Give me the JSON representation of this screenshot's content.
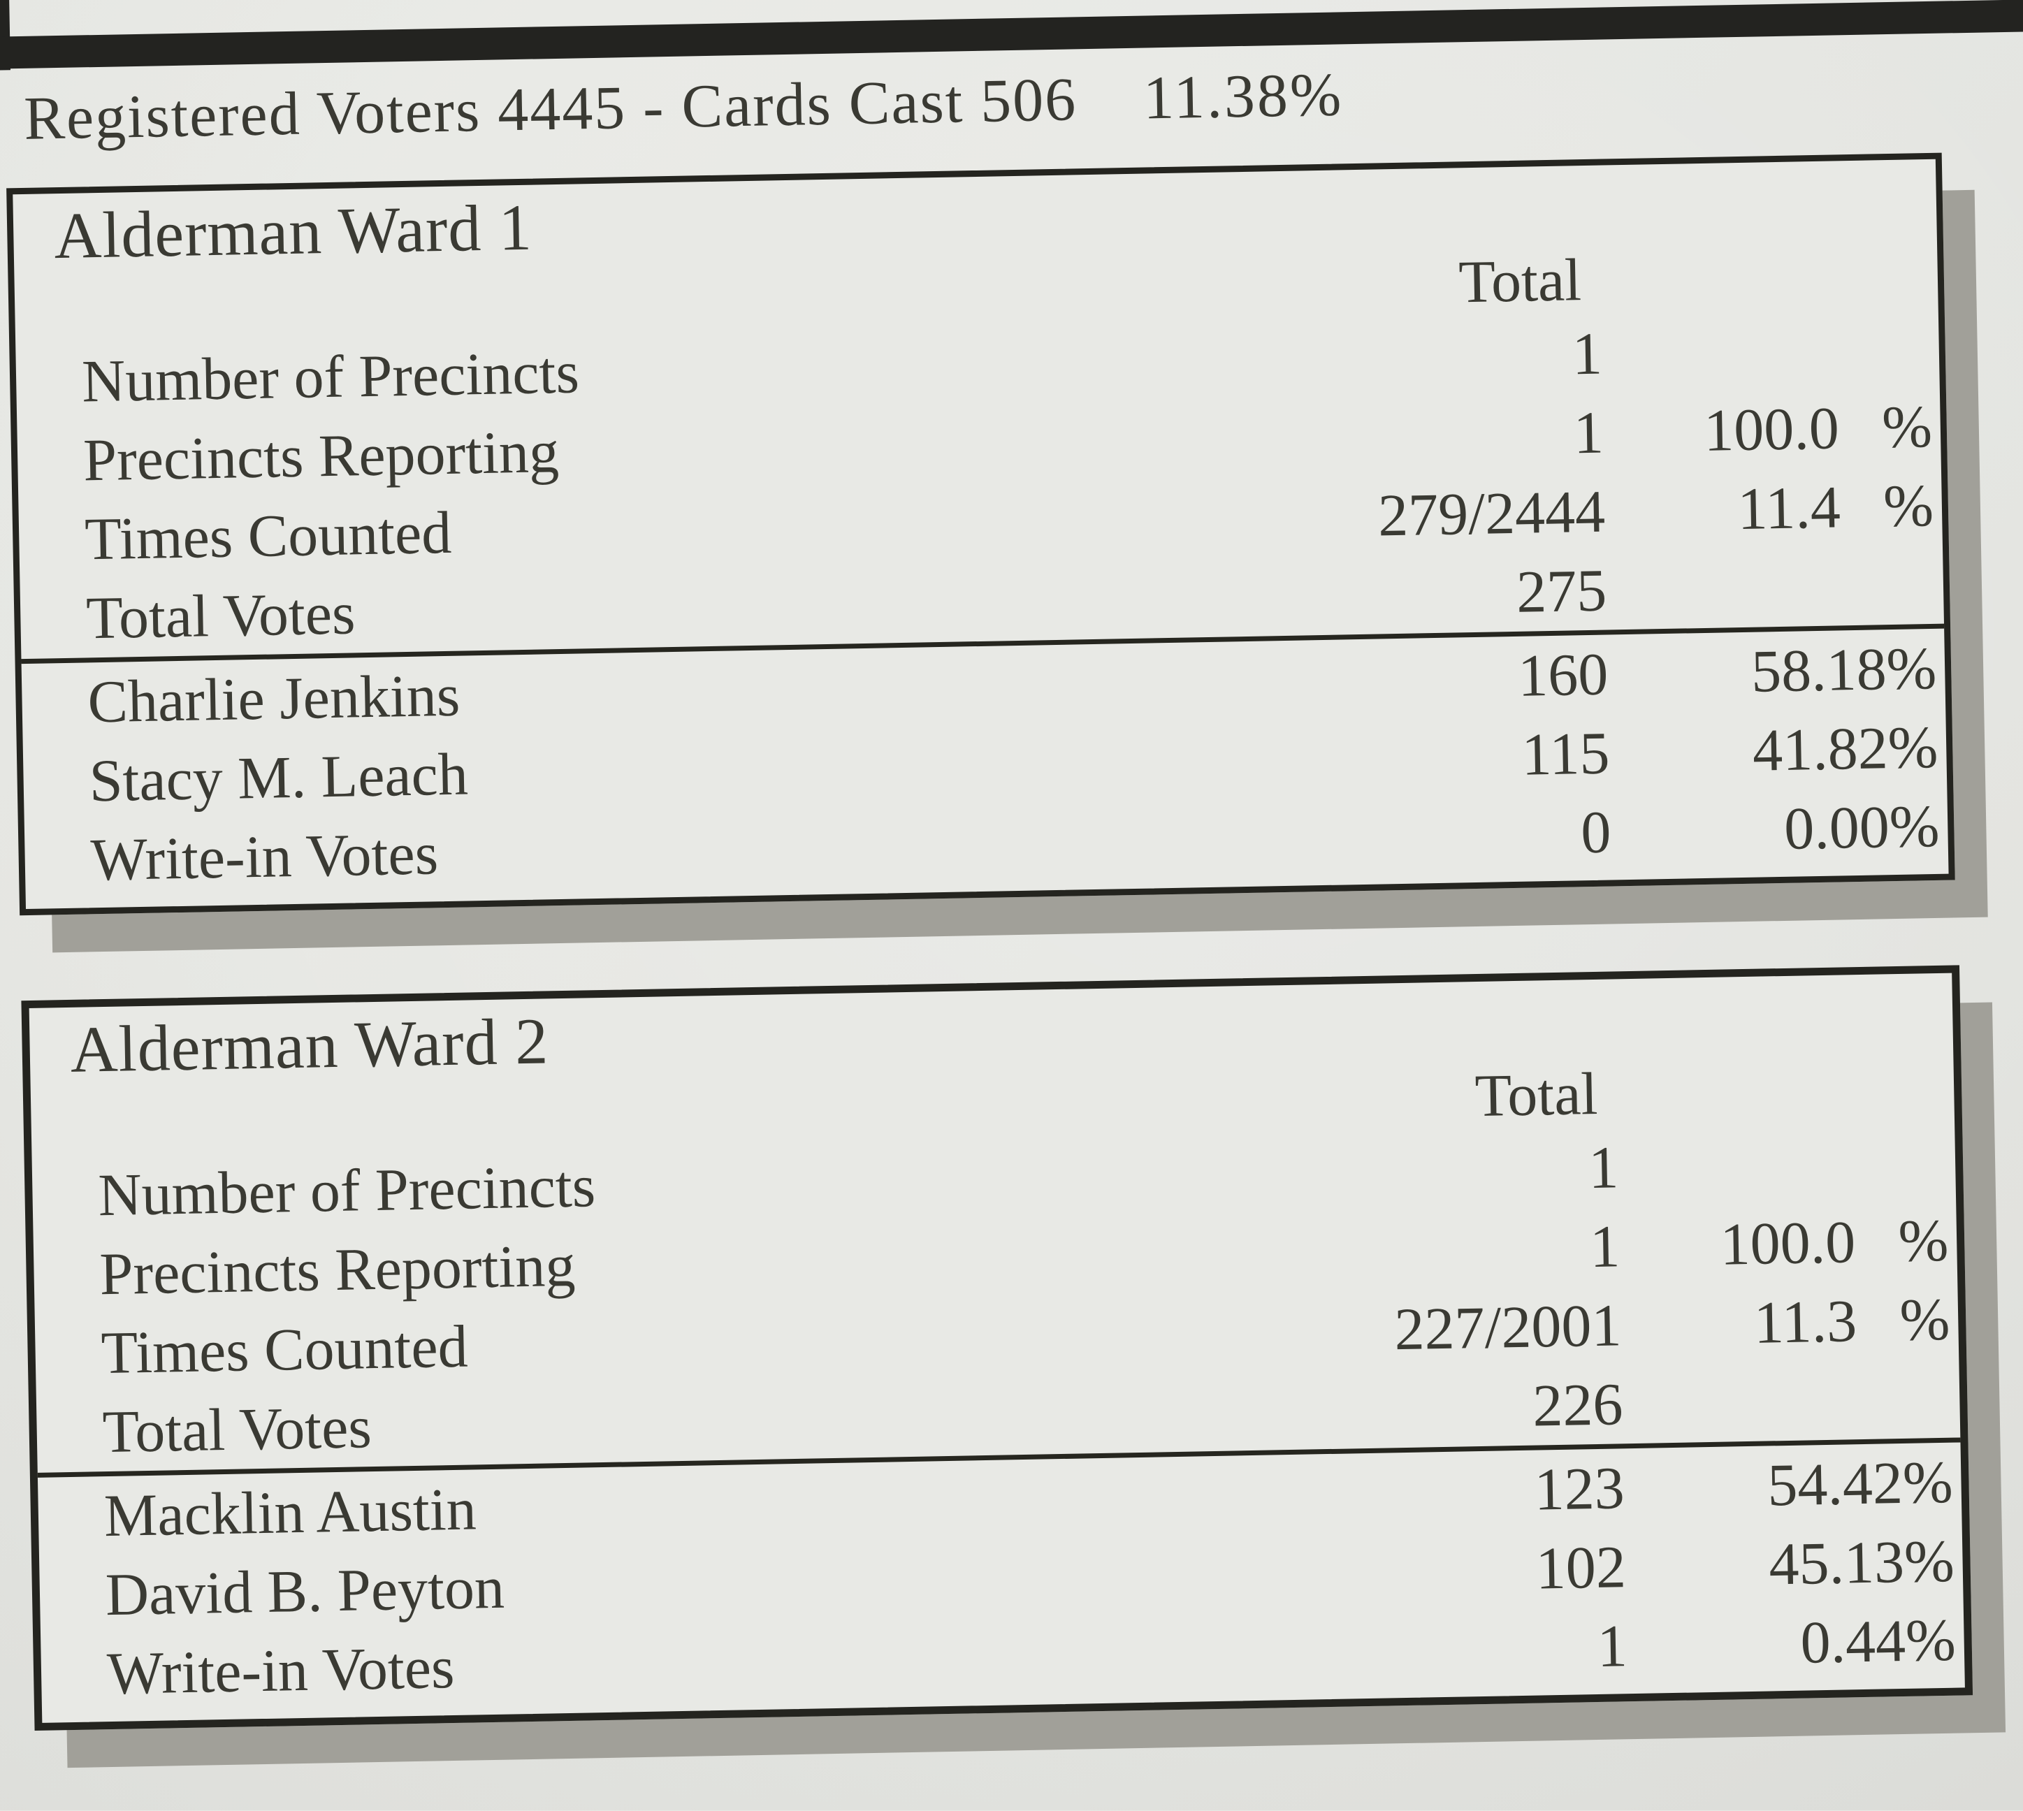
{
  "report": {
    "summary_line": {
      "text": "Registered Voters 4445 - Cards Cast 506",
      "turnout_percent": "11.38%"
    },
    "colors": {
      "paper": "#e8e9e5",
      "ink": "#3a3a33",
      "border": "#24241f",
      "shadow": "#a1a099"
    }
  },
  "boxes": [
    {
      "title": "Alderman Ward 1",
      "total_header": "Total",
      "stats": [
        {
          "label": "Number of Precincts",
          "value": "1",
          "percent": ""
        },
        {
          "label": "Precincts Reporting",
          "value": "1",
          "percent": "100.0 %"
        },
        {
          "label": "Times Counted",
          "value": "279/2444",
          "percent": "11.4 %"
        },
        {
          "label": "Total Votes",
          "value": "275",
          "percent": ""
        }
      ],
      "candidates": [
        {
          "name": "Charlie Jenkins",
          "votes": "160",
          "percent": "58.18%"
        },
        {
          "name": "Stacy M. Leach",
          "votes": "115",
          "percent": "41.82%"
        },
        {
          "name": "Write-in Votes",
          "votes": "0",
          "percent": "0.00%"
        }
      ]
    },
    {
      "title": "Alderman Ward 2",
      "total_header": "Total",
      "stats": [
        {
          "label": "Number of Precincts",
          "value": "1",
          "percent": ""
        },
        {
          "label": "Precincts Reporting",
          "value": "1",
          "percent": "100.0 %"
        },
        {
          "label": "Times Counted",
          "value": "227/2001",
          "percent": "11.3 %"
        },
        {
          "label": "Total Votes",
          "value": "226",
          "percent": ""
        }
      ],
      "candidates": [
        {
          "name": "Macklin Austin",
          "votes": "123",
          "percent": "54.42%"
        },
        {
          "name": "David B. Peyton",
          "votes": "102",
          "percent": "45.13%"
        },
        {
          "name": "Write-in Votes",
          "votes": "1",
          "percent": "0.44%"
        }
      ]
    }
  ]
}
